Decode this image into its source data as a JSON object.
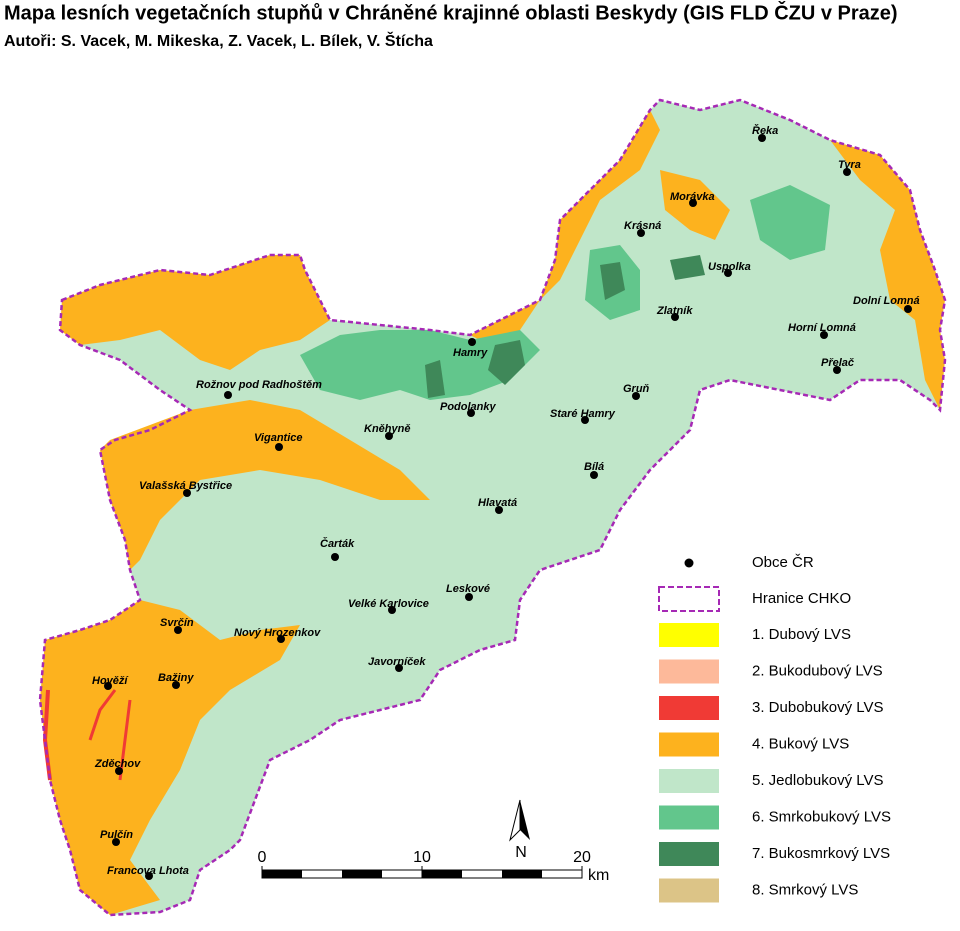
{
  "header": {
    "title": "Mapa lesních vegetačních stupňů v Chráněné krajinné oblasti Beskydy (GIS FLD ČZU v Praze)",
    "authors": "Autoři: S. Vacek, M. Mikeska, Z. Vacek, L. Bílek, V. Štícha"
  },
  "towns": [
    "Řeka",
    "Tyra",
    "Morávka",
    "Krásná",
    "Uspolka",
    "Dolní Lomná",
    "Zlatník",
    "Horní Lomná",
    "Přelač",
    "Hamry",
    "Rožnov pod Radhoštěm",
    "Podolanky",
    "Gruň",
    "Staré Hamry",
    "Kněhyně",
    "Vigantice",
    "Bílá",
    "Valašská Bystřice",
    "Hlavatá",
    "Čarták",
    "Leskové",
    "Velké Karlovice",
    "Svrčín",
    "Nový Hrozenkov",
    "Javorníček",
    "Bažiny",
    "Hověží",
    "Zděchov",
    "Pulčín",
    "Francova Lhota"
  ],
  "legend": {
    "towns": "Obce ČR",
    "border": "Hranice CHKO",
    "zones": [
      {
        "name": "1. Dubový LVS",
        "color": "#ffff00"
      },
      {
        "name": "2. Bukodubový LVS",
        "color": "#fdb99a"
      },
      {
        "name": "3. Dubobukový LVS",
        "color": "#f03a35"
      },
      {
        "name": "4. Bukový LVS",
        "color": "#fdb21e"
      },
      {
        "name": "5. Jedlobukový LVS",
        "color": "#c0e6c9"
      },
      {
        "name": "6. Smrkobukový LVS",
        "color": "#62c68c"
      },
      {
        "name": "7. Bukosmrkový LVS",
        "color": "#3f8859"
      },
      {
        "name": "8. Smrkový LVS",
        "color": "#dcc487"
      }
    ]
  },
  "scale_bar": {
    "ticks": [
      0,
      10,
      20
    ],
    "unit": "km"
  },
  "north": "N"
}
